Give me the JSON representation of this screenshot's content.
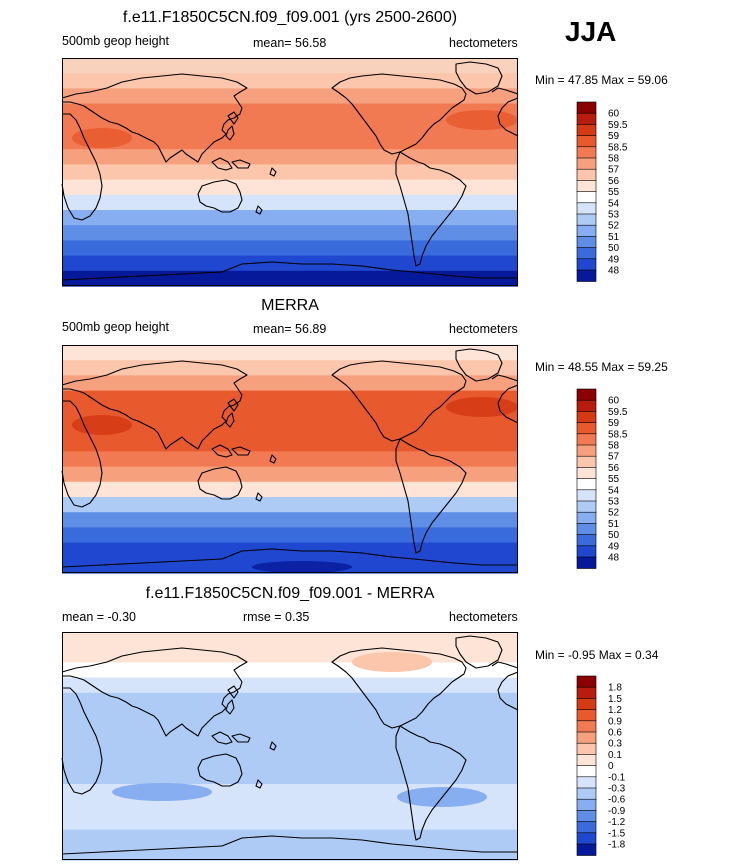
{
  "season": "JJA",
  "panels": [
    {
      "id": "model",
      "title": "f.e11.F1850C5CN.f09_f09.001 (yrs 2500-2600)",
      "left_label": "500mb geop height",
      "center_label": "mean=  56.58",
      "right_label": "hectometers",
      "minmax": "Min =  47.85 Max =  59.06",
      "colorbar": {
        "labels": [
          "60",
          "59.5",
          "59",
          "58.5",
          "58",
          "57",
          "56",
          "55",
          "54",
          "53",
          "52",
          "51",
          "50",
          "49",
          "48"
        ],
        "colors": [
          "#8b0000",
          "#b81c0c",
          "#d43a14",
          "#e85a2e",
          "#f27a52",
          "#f7a07e",
          "#fbc6ab",
          "#fde4d6",
          "#ffffff",
          "#d6e4fb",
          "#aecbf6",
          "#87aef0",
          "#5f8ee6",
          "#3a6bdc",
          "#1f47cf",
          "#06199a"
        ]
      }
    },
    {
      "id": "obs",
      "title": "MERRA",
      "left_label": "500mb geop height",
      "center_label": "mean=  56.89",
      "right_label": "hectometers",
      "minmax": "Min =  48.55 Max =  59.25",
      "colorbar": {
        "labels": [
          "60",
          "59.5",
          "59",
          "58.5",
          "58",
          "57",
          "56",
          "55",
          "54",
          "53",
          "52",
          "51",
          "50",
          "49",
          "48"
        ],
        "colors": [
          "#8b0000",
          "#b81c0c",
          "#d43a14",
          "#e85a2e",
          "#f27a52",
          "#f7a07e",
          "#fbc6ab",
          "#fde4d6",
          "#ffffff",
          "#d6e4fb",
          "#aecbf6",
          "#87aef0",
          "#5f8ee6",
          "#3a6bdc",
          "#1f47cf",
          "#06199a"
        ]
      }
    },
    {
      "id": "diff",
      "title": "f.e11.F1850C5CN.f09_f09.001 - MERRA",
      "left_label": "mean =  -0.30",
      "center_label": "rmse =   0.35",
      "right_label": "hectometers",
      "minmax": "Min =  -0.95 Max =   0.34",
      "colorbar": {
        "labels": [
          "1.8",
          "1.5",
          "1.2",
          "0.9",
          "0.6",
          "0.3",
          "0.1",
          "0",
          "-0.1",
          "-0.3",
          "-0.6",
          "-0.9",
          "-1.2",
          "-1.5",
          "-1.8"
        ],
        "colors": [
          "#8b0000",
          "#b81c0c",
          "#d43a14",
          "#e85a2e",
          "#f27a52",
          "#f7a07e",
          "#fbc6ab",
          "#fde4d6",
          "#ffffff",
          "#d6e4fb",
          "#aecbf6",
          "#87aef0",
          "#5f8ee6",
          "#3a6bdc",
          "#1f47cf",
          "#06199a"
        ]
      }
    }
  ],
  "map_fields": {
    "model_lat_colors": [
      "#f9d2bd",
      "#fbc6ab",
      "#f7a07e",
      "#f27a52",
      "#f27a52",
      "#f27a52",
      "#f7a07e",
      "#fbc6ab",
      "#fde4d6",
      "#d6e4fb",
      "#87aef0",
      "#5f8ee6",
      "#3a6bdc",
      "#1f47cf",
      "#06199a"
    ],
    "obs_lat_colors": [
      "#fde4d6",
      "#fbc6ab",
      "#f7a07e",
      "#e85a2e",
      "#e85a2e",
      "#e85a2e",
      "#e85a2e",
      "#f27a52",
      "#f7a07e",
      "#fde4d6",
      "#aecbf6",
      "#5f8ee6",
      "#3a6bdc",
      "#1f47cf",
      "#1f47cf"
    ],
    "diff_lat_colors": [
      "#fde4d6",
      "#fde4d6",
      "#ffffff",
      "#d6e4fb",
      "#aecbf6",
      "#aecbf6",
      "#aecbf6",
      "#aecbf6",
      "#aecbf6",
      "#aecbf6",
      "#d6e4fb",
      "#d6e4fb",
      "#d6e4fb",
      "#aecbf6",
      "#aecbf6"
    ]
  }
}
